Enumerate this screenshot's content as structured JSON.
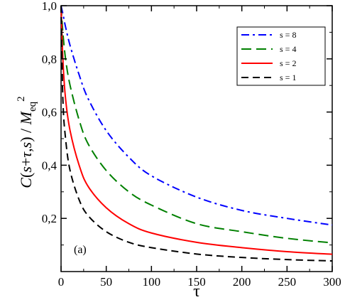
{
  "chart_data": {
    "type": "line",
    "panel_label": "(a)",
    "xlabel": "τ",
    "ylabel": {
      "C": "C",
      "open": "(",
      "s1": "s",
      "plus": "+",
      "tau": "τ",
      "comma": ",",
      "s2": "s",
      "close": ")",
      "slash": " / ",
      "M": "M",
      "sub": "eq",
      "sup": "2"
    },
    "xlim": [
      0,
      300
    ],
    "ylim": [
      0.0,
      1.0
    ],
    "x_ticks": [
      0,
      50,
      100,
      150,
      200,
      250,
      300
    ],
    "x_tick_labels": [
      "0",
      "50",
      "100",
      "150",
      "200",
      "250",
      "300"
    ],
    "y_ticks": [
      0.2,
      0.4,
      0.6,
      0.8,
      1.0
    ],
    "y_tick_labels": [
      "0,2",
      "0,4",
      "0,6",
      "0,8",
      "1,0"
    ],
    "grid": false,
    "legend_position": "top-right",
    "x": [
      0,
      2,
      5,
      10,
      20,
      30,
      50,
      75,
      100,
      150,
      200,
      250,
      300
    ],
    "series": [
      {
        "name": "s = 8",
        "color": "#0000ff",
        "dash": "dash-dot",
        "values": [
          1.0,
          0.97,
          0.92,
          0.85,
          0.74,
          0.65,
          0.53,
          0.43,
          0.36,
          0.28,
          0.23,
          0.2,
          0.175
        ]
      },
      {
        "name": "s = 4",
        "color": "#008000",
        "dash": "long-dash",
        "values": [
          1.0,
          0.9,
          0.8,
          0.7,
          0.57,
          0.48,
          0.38,
          0.3,
          0.25,
          0.18,
          0.15,
          0.125,
          0.108
        ]
      },
      {
        "name": "s = 2",
        "color": "#ff0000",
        "dash": "solid",
        "values": [
          1.0,
          0.8,
          0.65,
          0.53,
          0.4,
          0.32,
          0.24,
          0.18,
          0.145,
          0.11,
          0.09,
          0.075,
          0.065
        ]
      },
      {
        "name": "s = 1",
        "color": "#000000",
        "dash": "dash",
        "values": [
          1.0,
          0.65,
          0.5,
          0.38,
          0.27,
          0.21,
          0.15,
          0.11,
          0.09,
          0.066,
          0.053,
          0.045,
          0.04
        ]
      }
    ]
  }
}
